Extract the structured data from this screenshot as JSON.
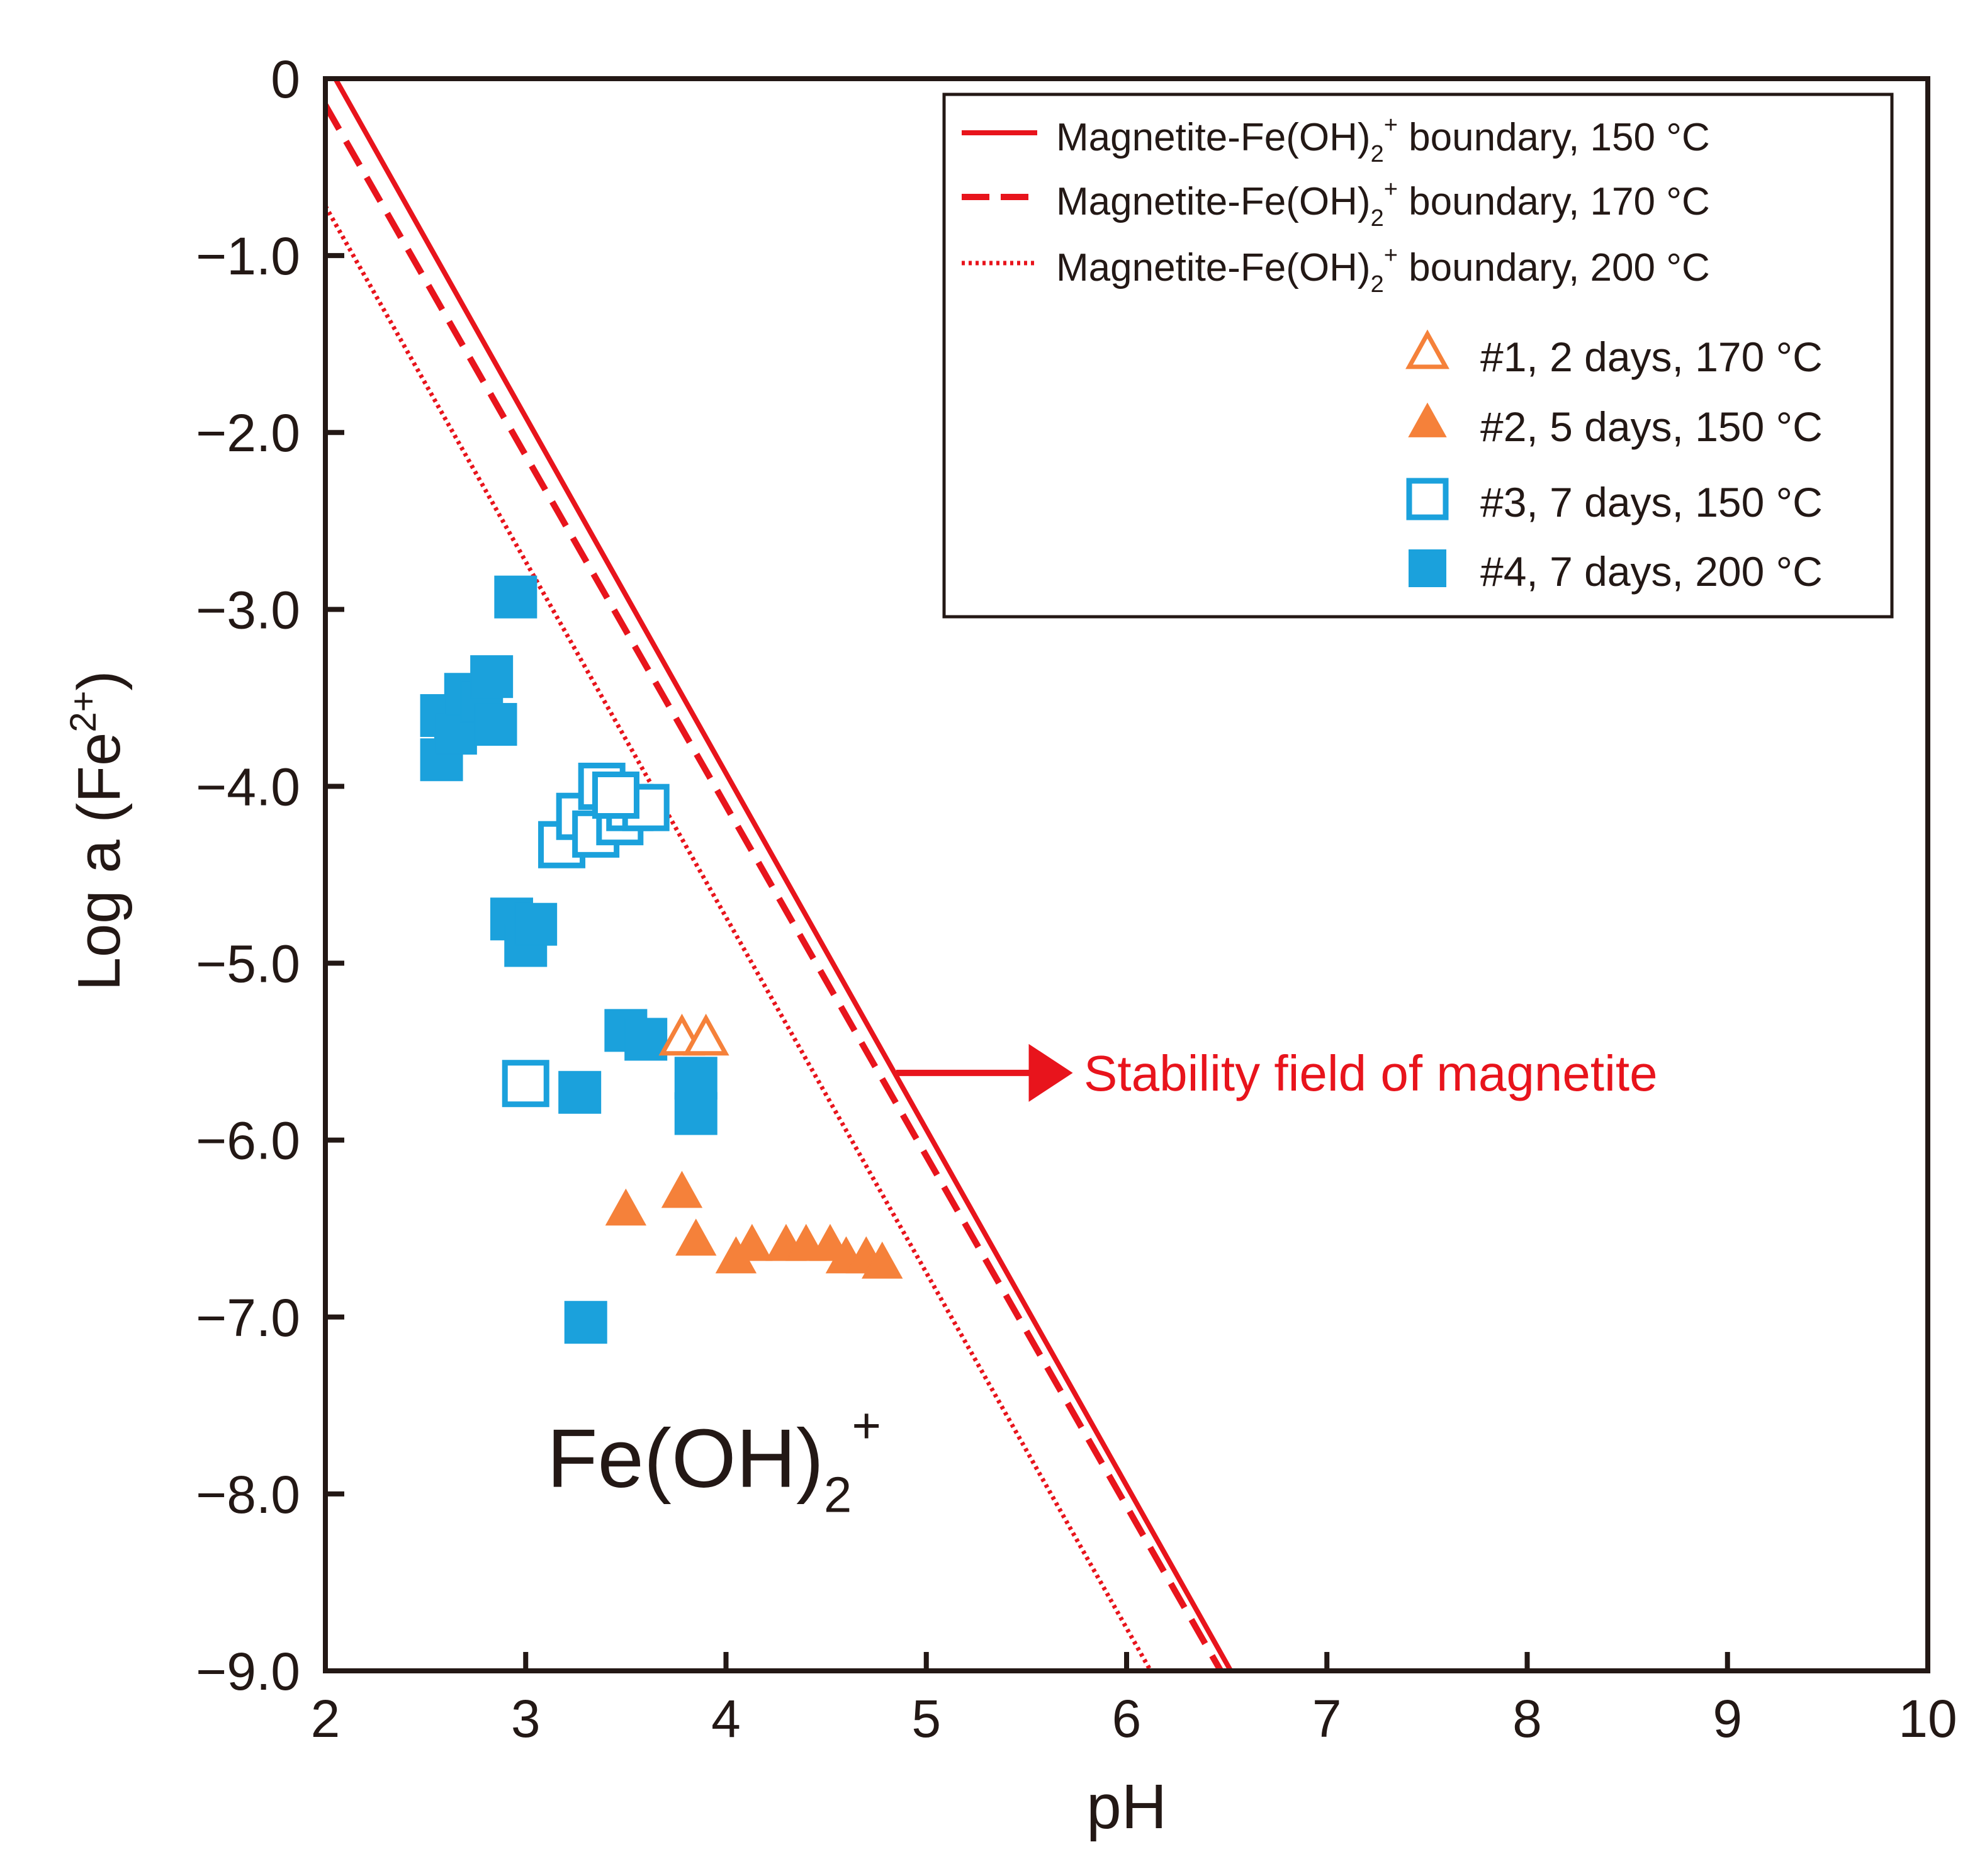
{
  "chart_data": {
    "type": "scatter",
    "title": "",
    "xlabel": "pH",
    "ylabel": "Log a (Fe",
    "ylabel_sup": "2+",
    "ylabel_end": ")",
    "xlim": [
      2,
      10
    ],
    "ylim": [
      -9,
      0
    ],
    "x_ticks": [
      {
        "value": 2,
        "label": "2"
      },
      {
        "value": 3,
        "label": "3"
      },
      {
        "value": 4,
        "label": "4"
      },
      {
        "value": 5,
        "label": "5"
      },
      {
        "value": 6,
        "label": "6"
      },
      {
        "value": 7,
        "label": "7"
      },
      {
        "value": 8,
        "label": "8"
      },
      {
        "value": 9,
        "label": "9"
      },
      {
        "value": 10,
        "label": "10"
      }
    ],
    "y_ticks": [
      {
        "value": 0,
        "label": "0"
      },
      {
        "value": -1,
        "label": "−1.0"
      },
      {
        "value": -2,
        "label": "−2.0"
      },
      {
        "value": -3,
        "label": "−3.0"
      },
      {
        "value": -4,
        "label": "−4.0"
      },
      {
        "value": -5,
        "label": "−5.0"
      },
      {
        "value": -6,
        "label": "−6.0"
      },
      {
        "value": -7,
        "label": "−7.0"
      },
      {
        "value": -8,
        "label": "−8.0"
      },
      {
        "value": -9,
        "label": "−9.0"
      }
    ],
    "boundaries": [
      {
        "name": "Magnetite-Fe(OH)",
        "sub": "2",
        "sup": "+",
        "suffix": " boundary, 150 °C",
        "style": "solid",
        "color": "#e8141c",
        "points": [
          [
            2.05,
            0
          ],
          [
            6.52,
            -9
          ]
        ]
      },
      {
        "name": "Magnetite-Fe(OH)",
        "sub": "2",
        "sup": "+",
        "suffix": " boundary, 170 °C",
        "style": "dashed",
        "color": "#e8141c",
        "points": [
          [
            2.0,
            -0.15
          ],
          [
            6.47,
            -9
          ]
        ]
      },
      {
        "name": "Magnetite-Fe(OH)",
        "sub": "2",
        "sup": "+",
        "suffix": " boundary, 200 °C",
        "style": "dotted",
        "color": "#e8141c",
        "points": [
          [
            2.0,
            -0.72
          ],
          [
            6.12,
            -9
          ]
        ]
      }
    ],
    "series": [
      {
        "name": "#1, 2 days, 170 °C",
        "marker": "triangle-open",
        "color": "#f5813a",
        "points": [
          [
            3.78,
            -5.43
          ],
          [
            3.9,
            -5.43
          ]
        ]
      },
      {
        "name": "#2, 5 days, 150 °C",
        "marker": "triangle-filled",
        "color": "#f5813a",
        "points": [
          [
            3.5,
            -6.4
          ],
          [
            3.78,
            -6.3
          ],
          [
            3.85,
            -6.57
          ],
          [
            4.05,
            -6.67
          ],
          [
            4.13,
            -6.6
          ],
          [
            4.3,
            -6.6
          ],
          [
            4.4,
            -6.6
          ],
          [
            4.52,
            -6.6
          ],
          [
            4.6,
            -6.67
          ],
          [
            4.7,
            -6.67
          ],
          [
            4.78,
            -6.7
          ]
        ]
      },
      {
        "name": "#3, 7 days, 150 °C",
        "marker": "square-open",
        "color": "#1ba1dc",
        "points": [
          [
            3.0,
            -5.68
          ],
          [
            3.18,
            -4.33
          ],
          [
            3.27,
            -4.17
          ],
          [
            3.35,
            -4.27
          ],
          [
            3.38,
            -4.0
          ],
          [
            3.47,
            -4.2
          ],
          [
            3.52,
            -4.12
          ],
          [
            3.6,
            -4.12
          ],
          [
            3.45,
            -4.05
          ]
        ]
      },
      {
        "name": "#4, 7 days, 200 °C",
        "marker": "square-filled",
        "color": "#1ba1dc",
        "points": [
          [
            2.58,
            -3.85
          ],
          [
            2.58,
            -3.6
          ],
          [
            2.65,
            -3.7
          ],
          [
            2.7,
            -3.48
          ],
          [
            2.78,
            -3.52
          ],
          [
            2.83,
            -3.38
          ],
          [
            2.85,
            -3.65
          ],
          [
            2.95,
            -2.93
          ],
          [
            2.93,
            -4.75
          ],
          [
            3.0,
            -4.9
          ],
          [
            3.05,
            -4.78
          ],
          [
            3.27,
            -5.73
          ],
          [
            3.3,
            -7.03
          ],
          [
            3.5,
            -5.38
          ],
          [
            3.6,
            -5.43
          ],
          [
            3.85,
            -5.65
          ],
          [
            3.85,
            -5.85
          ]
        ]
      }
    ],
    "annotations": {
      "stability_label": "Stability field of magnetite",
      "arrow_from": [
        4.85,
        -5.62
      ],
      "arrow_to": [
        5.7,
        -5.62
      ],
      "region_label": "Fe(OH)",
      "region_label_sub": "2",
      "region_label_sup": "+",
      "region_label_pos": [
        3.2,
        -7.8
      ]
    },
    "legend_position": "top-right",
    "colors": {
      "boundary": "#e8141c",
      "orange": "#f5813a",
      "blue": "#1ba1dc",
      "axis": "#231815"
    }
  }
}
